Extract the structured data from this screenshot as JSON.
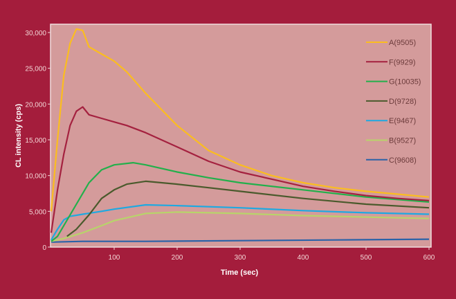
{
  "chart_data": {
    "type": "line",
    "title": "",
    "xlabel": "Time (sec)",
    "ylabel": "CL intensity (cps)",
    "xlim": [
      0,
      600
    ],
    "ylim": [
      0,
      30000
    ],
    "xticks": [
      100,
      200,
      300,
      400,
      500,
      600
    ],
    "xtick_labels": [
      "100",
      "200",
      "300",
      "400",
      "500",
      "600"
    ],
    "yticks": [
      0,
      5000,
      10000,
      15000,
      20000,
      25000,
      30000
    ],
    "ytick_labels": [
      "0",
      "5,000",
      "10,000",
      "15,000",
      "20,000",
      "25,000",
      "30,000"
    ],
    "grid": false,
    "legend_position": "top-right",
    "colors": {
      "background": "#a41d3c",
      "plot_bg": "#d49b9b"
    },
    "series": [
      {
        "name": "A(9505)",
        "color": "#fbbd1f",
        "x": [
          0,
          10,
          20,
          30,
          40,
          50,
          60,
          80,
          100,
          120,
          150,
          200,
          250,
          300,
          350,
          400,
          450,
          500,
          550,
          600
        ],
        "y": [
          5000,
          15000,
          24000,
          28500,
          30500,
          30300,
          28000,
          27000,
          26000,
          24500,
          21500,
          17000,
          13500,
          11500,
          10000,
          9000,
          8300,
          7800,
          7400,
          7000
        ]
      },
      {
        "name": "F(9929)",
        "color": "#a4213f",
        "x": [
          0,
          10,
          20,
          30,
          40,
          50,
          60,
          80,
          100,
          120,
          150,
          200,
          250,
          300,
          350,
          400,
          450,
          500,
          550,
          600
        ],
        "y": [
          2000,
          8000,
          13000,
          17000,
          19000,
          19600,
          18500,
          18000,
          17500,
          17000,
          16000,
          14000,
          12000,
          10500,
          9500,
          8500,
          7800,
          7200,
          6800,
          6500
        ]
      },
      {
        "name": "G(10035)",
        "color": "#22b04b",
        "x": [
          0,
          10,
          20,
          40,
          60,
          80,
          100,
          130,
          150,
          200,
          250,
          300,
          400,
          500,
          600
        ],
        "y": [
          800,
          1500,
          3000,
          6000,
          9000,
          10800,
          11500,
          11800,
          11500,
          10500,
          9700,
          9000,
          8000,
          7000,
          6300
        ]
      },
      {
        "name": "D(9728)",
        "color": "#4a5a2c",
        "x": [
          25,
          40,
          60,
          80,
          100,
          120,
          150,
          200,
          250,
          300,
          400,
          500,
          600
        ],
        "y": [
          1500,
          2500,
          4500,
          6800,
          8000,
          8800,
          9200,
          8800,
          8300,
          7800,
          6800,
          6000,
          5500
        ]
      },
      {
        "name": "E(9467)",
        "color": "#1ea9e1",
        "x": [
          0,
          10,
          20,
          30,
          50,
          80,
          100,
          150,
          200,
          300,
          400,
          500,
          600
        ],
        "y": [
          1000,
          2500,
          3800,
          4300,
          4600,
          5000,
          5300,
          5900,
          5800,
          5500,
          5100,
          4800,
          4600
        ]
      },
      {
        "name": "B(9527)",
        "color": "#b8d46a",
        "x": [
          0,
          20,
          50,
          80,
          100,
          150,
          200,
          300,
          400,
          500,
          600
        ],
        "y": [
          800,
          1200,
          2000,
          3000,
          3700,
          4700,
          4900,
          4700,
          4400,
          4200,
          4000
        ]
      },
      {
        "name": "C(9608)",
        "color": "#2a62a8",
        "x": [
          0,
          50,
          150,
          300,
          450,
          600
        ],
        "y": [
          700,
          800,
          800,
          900,
          1000,
          1100
        ]
      }
    ]
  }
}
